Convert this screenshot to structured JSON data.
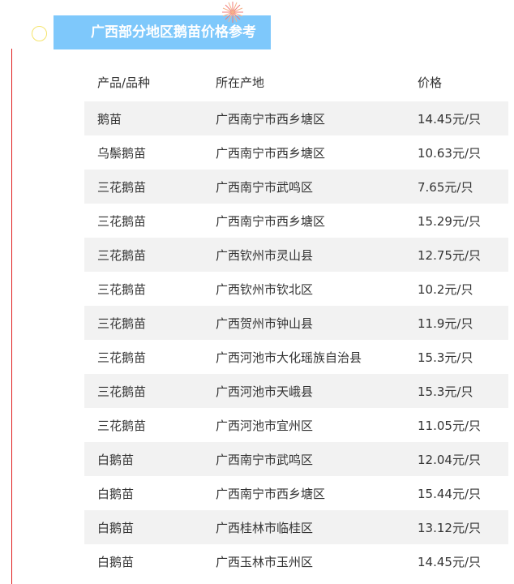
{
  "title": "广西部分地区鹅苗价格参考",
  "columns": [
    "产品/品种",
    "所在产地",
    "价格"
  ],
  "rows": [
    [
      "鹅苗",
      "广西南宁市西乡塘区",
      "14.45元/只"
    ],
    [
      "乌鬃鹅苗",
      "广西南宁市西乡塘区",
      "10.63元/只"
    ],
    [
      "三花鹅苗",
      "广西南宁市武鸣区",
      "7.65元/只"
    ],
    [
      "三花鹅苗",
      "广西南宁市西乡塘区",
      "15.29元/只"
    ],
    [
      "三花鹅苗",
      "广西钦州市灵山县",
      "12.75元/只"
    ],
    [
      "三花鹅苗",
      "广西钦州市钦北区",
      "10.2元/只"
    ],
    [
      "三花鹅苗",
      "广西贺州市钟山县",
      "11.9元/只"
    ],
    [
      "三花鹅苗",
      "广西河池市大化瑶族自治县",
      "15.3元/只"
    ],
    [
      "三花鹅苗",
      "广西河池市天峨县",
      "15.3元/只"
    ],
    [
      "三花鹅苗",
      "广西河池市宜州区",
      "11.05元/只"
    ],
    [
      "白鹅苗",
      "广西南宁市武鸣区",
      "12.04元/只"
    ],
    [
      "白鹅苗",
      "广西南宁市西乡塘区",
      "15.44元/只"
    ],
    [
      "白鹅苗",
      "广西桂林市临桂区",
      "13.12元/只"
    ],
    [
      "白鹅苗",
      "广西玉林市玉州区",
      "14.45元/只"
    ]
  ],
  "colors": {
    "banner": "#7ec8fb",
    "row_alt": "#f2f2f2",
    "line": "#e02020"
  }
}
